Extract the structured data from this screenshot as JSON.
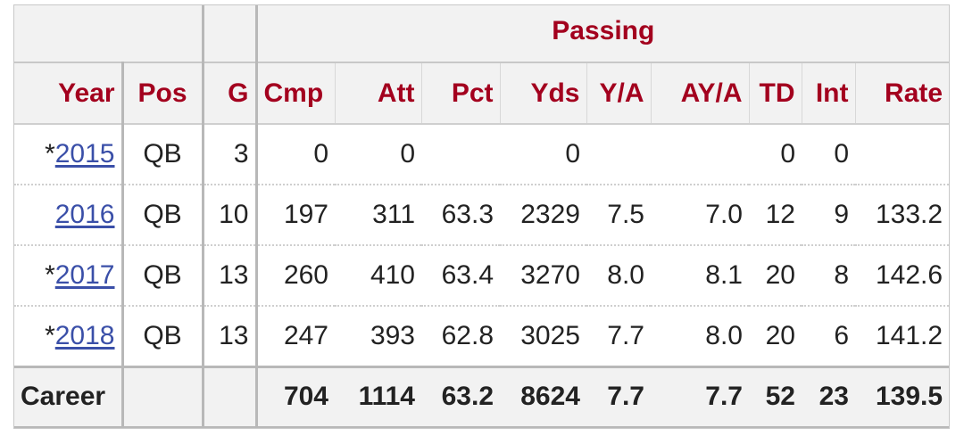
{
  "table": {
    "group_header": "Passing",
    "columns": [
      "Year",
      "Pos",
      "G",
      "Cmp",
      "Att",
      "Pct",
      "Yds",
      "Y/A",
      "AY/A",
      "TD",
      "Int",
      "Rate"
    ],
    "rows": [
      {
        "prefix": "*",
        "year": "2015",
        "pos": "QB",
        "g": "3",
        "cmp": "0",
        "att": "0",
        "pct": "",
        "yds": "0",
        "ya": "",
        "aya": "",
        "td": "0",
        "int": "0",
        "rate": ""
      },
      {
        "prefix": "",
        "year": "2016",
        "pos": "QB",
        "g": "10",
        "cmp": "197",
        "att": "311",
        "pct": "63.3",
        "yds": "2329",
        "ya": "7.5",
        "aya": "7.0",
        "td": "12",
        "int": "9",
        "rate": "133.2"
      },
      {
        "prefix": "*",
        "year": "2017",
        "pos": "QB",
        "g": "13",
        "cmp": "260",
        "att": "410",
        "pct": "63.4",
        "yds": "3270",
        "ya": "8.0",
        "aya": "8.1",
        "td": "20",
        "int": "8",
        "rate": "142.6"
      },
      {
        "prefix": "*",
        "year": "2018",
        "pos": "QB",
        "g": "13",
        "cmp": "247",
        "att": "393",
        "pct": "62.8",
        "yds": "3025",
        "ya": "7.7",
        "aya": "8.0",
        "td": "20",
        "int": "6",
        "rate": "141.2"
      }
    ],
    "career": {
      "label": "Career",
      "pos": "",
      "g": "",
      "cmp": "704",
      "att": "1114",
      "pct": "63.2",
      "yds": "8624",
      "ya": "7.7",
      "aya": "7.7",
      "td": "52",
      "int": "23",
      "rate": "139.5"
    }
  },
  "colors": {
    "header_text": "#a3001e",
    "link": "#3a4fa8",
    "header_bg": "#f2f2f2",
    "body_text": "#222222"
  }
}
